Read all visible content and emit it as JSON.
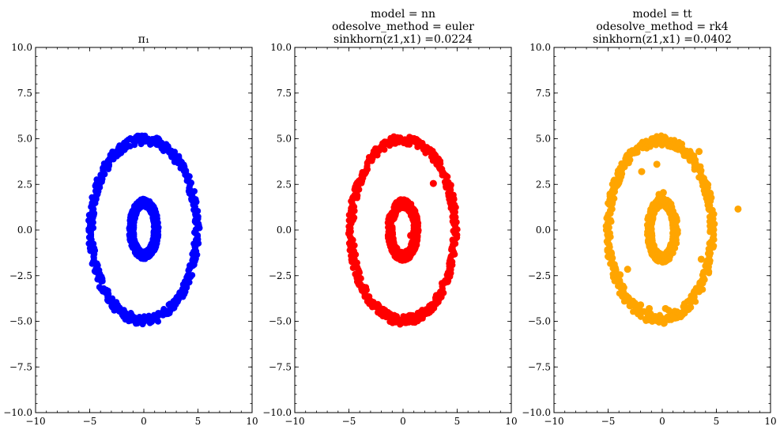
{
  "chart_data": [
    {
      "type": "scatter",
      "title_lines": [
        "π₁"
      ],
      "xlim": [
        -10,
        10
      ],
      "ylim": [
        -10,
        10
      ],
      "x_ticks": [
        -10,
        -5,
        0,
        5,
        10
      ],
      "y_ticks": [
        -10.0,
        -7.5,
        -5.0,
        -2.5,
        0.0,
        2.5,
        5.0,
        7.5,
        10.0
      ],
      "x_tick_labels": [
        "−10",
        "−5",
        "0",
        "5",
        "10"
      ],
      "y_tick_labels": [
        "−10.0",
        "−7.5",
        "−5.0",
        "−2.5",
        "0.0",
        "2.5",
        "5.0",
        "7.5",
        "10.0"
      ],
      "color": "#0000ff",
      "rings": [
        {
          "cx": 0,
          "cy": 0,
          "rx": 4.9,
          "ry": 4.95,
          "width": 0.5
        },
        {
          "cx": 0,
          "cy": 0.05,
          "rx": 1.15,
          "ry": 1.45,
          "width": 0.45
        }
      ],
      "outliers": []
    },
    {
      "type": "scatter",
      "title_lines": [
        "model = nn",
        "odesolve_method = euler",
        "sinkhorn(z1,x1) =0.0224"
      ],
      "xlim": [
        -10,
        10
      ],
      "ylim": [
        -10,
        10
      ],
      "x_ticks": [
        -10,
        -5,
        0,
        5,
        10
      ],
      "y_ticks": [
        -10.0,
        -7.5,
        -5.0,
        -2.5,
        0.0,
        2.5,
        5.0,
        7.5,
        10.0
      ],
      "x_tick_labels": [
        "−10",
        "−5",
        "0",
        "5",
        "10"
      ],
      "y_tick_labels": [
        "−10.0",
        "−7.5",
        "−5.0",
        "−2.5",
        "0.0",
        "2.5",
        "5.0",
        "7.5",
        "10.0"
      ],
      "color": "#ff0000",
      "rings": [
        {
          "cx": 0,
          "cy": 0,
          "rx": 4.8,
          "ry": 4.95,
          "width": 0.5
        },
        {
          "cx": 0,
          "cy": 0,
          "rx": 1.2,
          "ry": 1.45,
          "width": 0.5
        }
      ],
      "outliers": [
        [
          2.8,
          2.55
        ],
        [
          0.75,
          0.95
        ],
        [
          0.7,
          -0.3
        ]
      ]
    },
    {
      "type": "scatter",
      "title_lines": [
        "model = tt",
        "odesolve_method = rk4",
        "sinkhorn(z1,x1) =0.0402"
      ],
      "xlim": [
        -10,
        10
      ],
      "ylim": [
        -10,
        10
      ],
      "x_ticks": [
        -10,
        -5,
        0,
        5,
        10
      ],
      "y_ticks": [
        -10.0,
        -7.5,
        -5.0,
        -2.5,
        0.0,
        2.5,
        5.0,
        7.5,
        10.0
      ],
      "x_tick_labels": [
        "−10",
        "−5",
        "0",
        "5",
        "10"
      ],
      "y_tick_labels": [
        "−10.0",
        "−7.5",
        "−5.0",
        "−2.5",
        "0.0",
        "2.5",
        "5.0",
        "7.5",
        "10.0"
      ],
      "color": "#ffa500",
      "rings": [
        {
          "cx": -0.2,
          "cy": 0,
          "rx": 4.8,
          "ry": 4.9,
          "width": 0.55
        },
        {
          "cx": 0,
          "cy": 0,
          "rx": 1.2,
          "ry": 1.55,
          "width": 0.5
        }
      ],
      "outliers": [
        [
          7.0,
          1.15
        ],
        [
          -0.5,
          3.6
        ],
        [
          -0.3,
          1.95
        ],
        [
          0.1,
          2.05
        ],
        [
          -3.2,
          -2.15
        ],
        [
          -3.9,
          -2.45
        ],
        [
          -1.2,
          -4.3
        ],
        [
          0.3,
          -4.3
        ],
        [
          0.6,
          -4.4
        ],
        [
          -1.9,
          3.2
        ],
        [
          3.4,
          4.3
        ],
        [
          -4.1,
          2.5
        ],
        [
          3.6,
          -1.6
        ],
        [
          4.5,
          0.0
        ],
        [
          -2.0,
          -4.1
        ],
        [
          3.5,
          -3.3
        ]
      ]
    }
  ]
}
